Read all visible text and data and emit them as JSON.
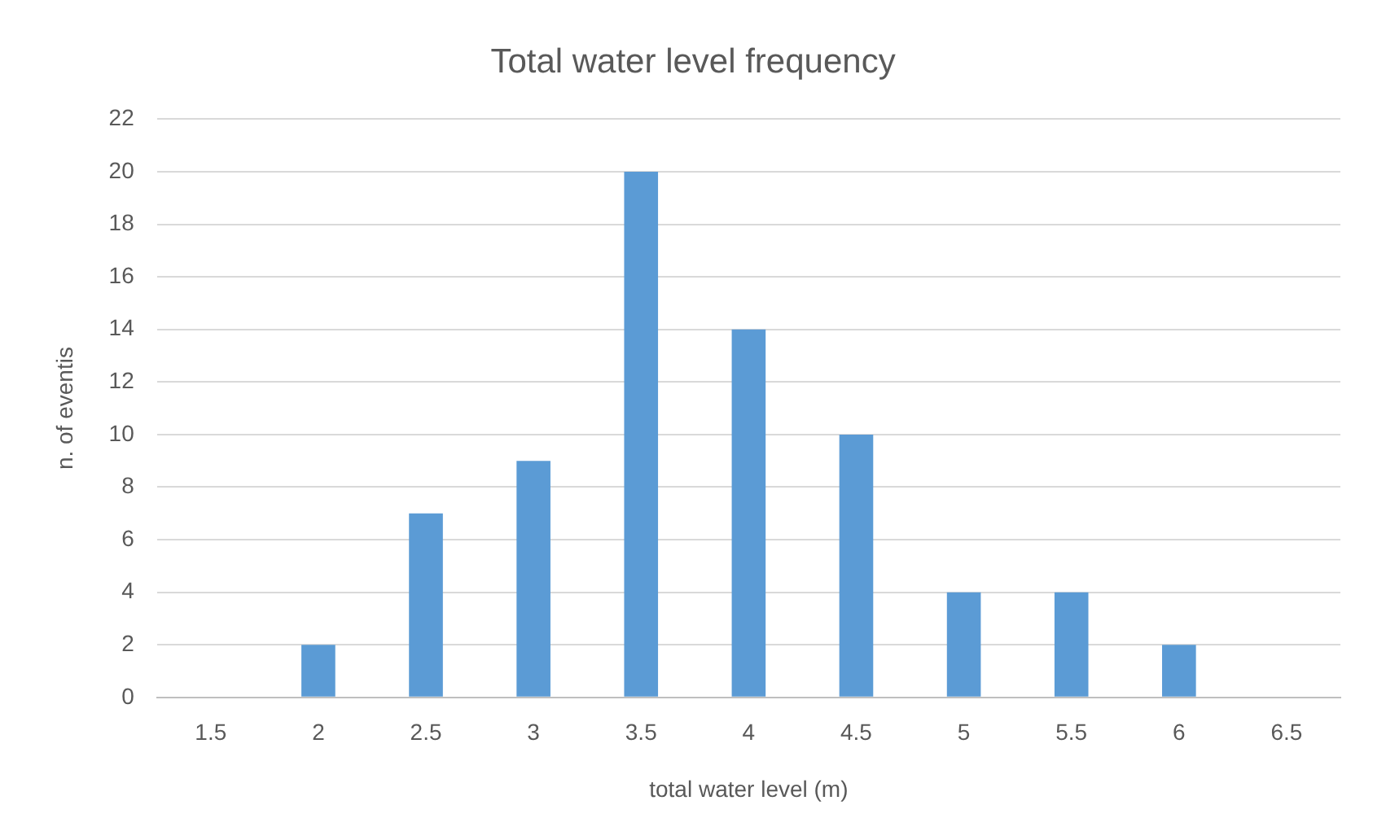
{
  "chart_data": {
    "type": "bar",
    "title": "Total water level frequency",
    "xlabel": "total water level (m)",
    "ylabel": "n. of eventis",
    "categories": [
      "1.5",
      "2",
      "2.5",
      "3",
      "3.5",
      "4",
      "4.5",
      "5",
      "5.5",
      "6",
      "6.5"
    ],
    "values": [
      0,
      2,
      7,
      9,
      20,
      14,
      10,
      4,
      4,
      2,
      0
    ],
    "color": "#5b9bd5",
    "ylim": [
      0,
      22
    ],
    "yticks": [
      0,
      2,
      4,
      6,
      8,
      10,
      12,
      14,
      16,
      18,
      20,
      22
    ],
    "grid": "y",
    "legend": false
  }
}
